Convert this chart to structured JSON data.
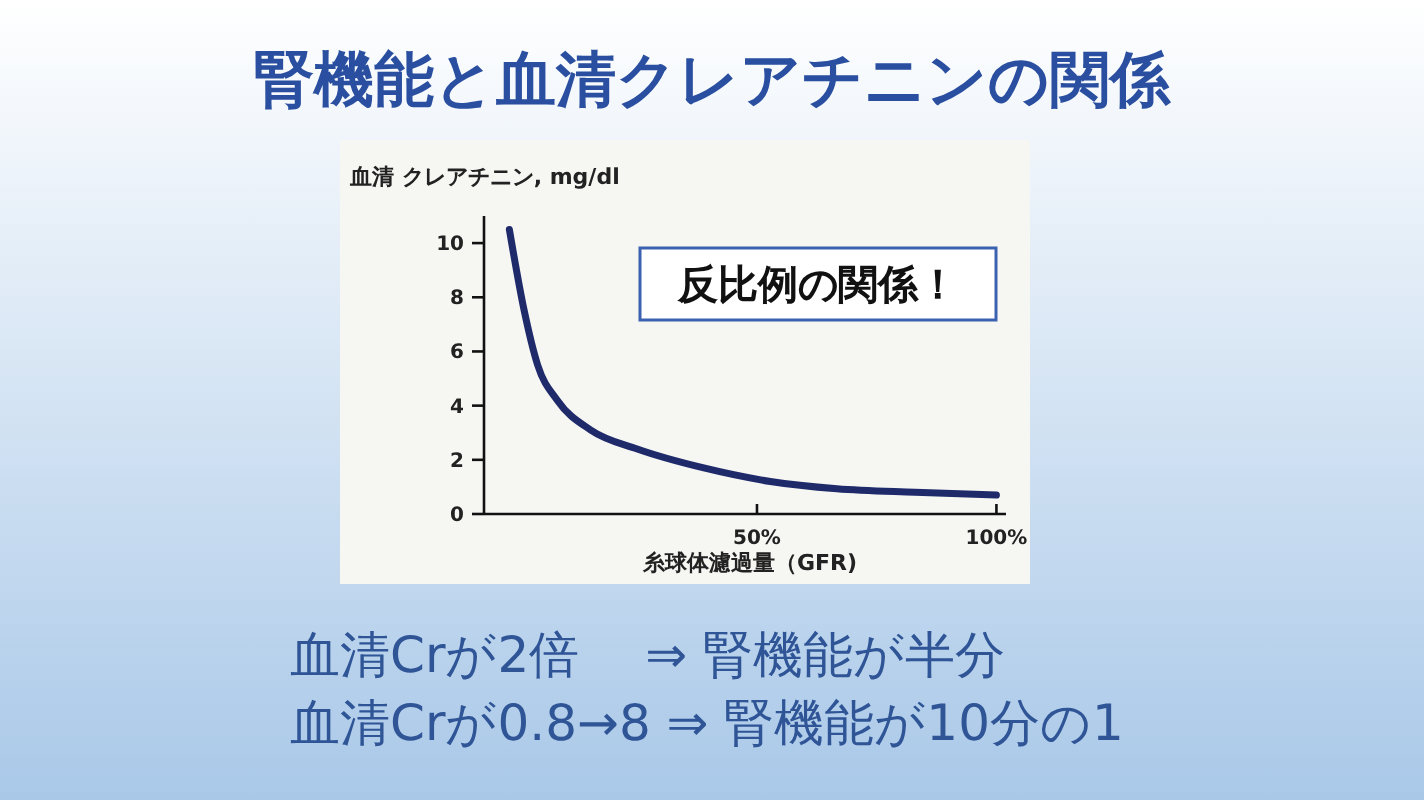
{
  "chart_data": {
    "type": "line",
    "title": "腎機能と血清クレアチニンの関係",
    "ylabel": "血清 クレアチニン, mg/dl",
    "xlabel": "糸球体濾過量（GFR)",
    "x": [
      -1.7,
      1.4,
      4.2,
      8.3,
      15.3,
      25,
      38.9,
      52.8,
      66.7,
      83,
      100
    ],
    "series": [
      {
        "color": "#1f2a6b",
        "values": [
          10.5,
          7.5,
          5.5,
          4.2,
          3.1,
          2.4,
          1.7,
          1.2,
          0.93,
          0.8,
          0.7
        ]
      }
    ],
    "xlim": [
      -7,
      102
    ],
    "ylim": [
      0,
      11
    ],
    "xticks": [
      {
        "value": 50,
        "label": "50%"
      },
      {
        "value": 100,
        "label": "100%"
      }
    ],
    "yticks": [
      0,
      2,
      4,
      6,
      8,
      10
    ],
    "grid": false,
    "marker": "none",
    "line_style": "solid",
    "annotations": [
      "反比例の関係！",
      "血清Crが2倍　 ⇒ 腎機能が半分",
      "血清Crが0.8→8 ⇒ 腎機能が10分の1"
    ]
  }
}
